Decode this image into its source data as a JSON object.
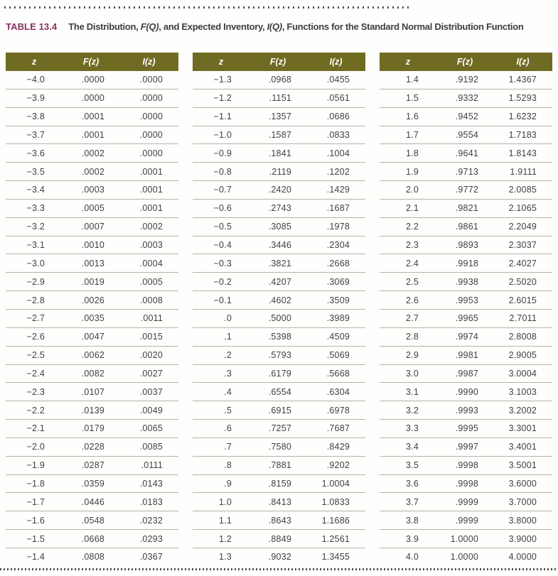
{
  "caption": {
    "label": "TABLE 13.4",
    "title_parts": [
      "The Distribution, ",
      "F(Q)",
      ", and Expected Inventory, ",
      "I(Q)",
      ", Functions for the Standard Normal Distribution Function"
    ]
  },
  "columns": [
    "z",
    "F(z)",
    "I(z)"
  ],
  "colors": {
    "header_bg": "#6f6b22",
    "table_label_color": "#85315f"
  },
  "tables": [
    {
      "rows": [
        [
          "−4.0",
          ".0000",
          ".0000"
        ],
        [
          "−3.9",
          ".0000",
          ".0000"
        ],
        [
          "−3.8",
          ".0001",
          ".0000"
        ],
        [
          "−3.7",
          ".0001",
          ".0000"
        ],
        [
          "−3.6",
          ".0002",
          ".0000"
        ],
        [
          "−3.5",
          ".0002",
          ".0001"
        ],
        [
          "−3.4",
          ".0003",
          ".0001"
        ],
        [
          "−3.3",
          ".0005",
          ".0001"
        ],
        [
          "−3.2",
          ".0007",
          ".0002"
        ],
        [
          "−3.1",
          ".0010",
          ".0003"
        ],
        [
          "−3.0",
          ".0013",
          ".0004"
        ],
        [
          "−2.9",
          ".0019",
          ".0005"
        ],
        [
          "−2.8",
          ".0026",
          ".0008"
        ],
        [
          "−2.7",
          ".0035",
          ".0011"
        ],
        [
          "−2.6",
          ".0047",
          ".0015"
        ],
        [
          "−2.5",
          ".0062",
          ".0020"
        ],
        [
          "−2.4",
          ".0082",
          ".0027"
        ],
        [
          "−2.3",
          ".0107",
          ".0037"
        ],
        [
          "−2.2",
          ".0139",
          ".0049"
        ],
        [
          "−2.1",
          ".0179",
          ".0065"
        ],
        [
          "−2.0",
          ".0228",
          ".0085"
        ],
        [
          "−1.9",
          ".0287",
          ".0111"
        ],
        [
          "−1.8",
          ".0359",
          ".0143"
        ],
        [
          "−1.7",
          ".0446",
          ".0183"
        ],
        [
          "−1.6",
          ".0548",
          ".0232"
        ],
        [
          "−1.5",
          ".0668",
          ".0293"
        ],
        [
          "−1.4",
          ".0808",
          ".0367"
        ]
      ]
    },
    {
      "rows": [
        [
          "−1.3",
          ".0968",
          ".0455"
        ],
        [
          "−1.2",
          ".1151",
          ".0561"
        ],
        [
          "−1.1",
          ".1357",
          ".0686"
        ],
        [
          "−1.0",
          ".1587",
          ".0833"
        ],
        [
          "−0.9",
          ".1841",
          ".1004"
        ],
        [
          "−0.8",
          ".2119",
          ".1202"
        ],
        [
          "−0.7",
          ".2420",
          ".1429"
        ],
        [
          "−0.6",
          ".2743",
          ".1687"
        ],
        [
          "−0.5",
          ".3085",
          ".1978"
        ],
        [
          "−0.4",
          ".3446",
          ".2304"
        ],
        [
          "−0.3",
          ".3821",
          ".2668"
        ],
        [
          "−0.2",
          ".4207",
          ".3069"
        ],
        [
          "−0.1",
          ".4602",
          ".3509"
        ],
        [
          ".0",
          ".5000",
          ".3989"
        ],
        [
          ".1",
          ".5398",
          ".4509"
        ],
        [
          ".2",
          ".5793",
          ".5069"
        ],
        [
          ".3",
          ".6179",
          ".5668"
        ],
        [
          ".4",
          ".6554",
          ".6304"
        ],
        [
          ".5",
          ".6915",
          ".6978"
        ],
        [
          ".6",
          ".7257",
          ".7687"
        ],
        [
          ".7",
          ".7580",
          ".8429"
        ],
        [
          ".8",
          ".7881",
          ".9202"
        ],
        [
          ".9",
          ".8159",
          "1.0004"
        ],
        [
          "1.0",
          ".8413",
          "1.0833"
        ],
        [
          "1.1",
          ".8643",
          "1.1686"
        ],
        [
          "1.2",
          ".8849",
          "1.2561"
        ],
        [
          "1.3",
          ".9032",
          "1.3455"
        ]
      ]
    },
    {
      "rows": [
        [
          "1.4",
          ".9192",
          "1.4367"
        ],
        [
          "1.5",
          ".9332",
          "1.5293"
        ],
        [
          "1.6",
          ".9452",
          "1.6232"
        ],
        [
          "1.7",
          ".9554",
          "1.7183"
        ],
        [
          "1.8",
          ".9641",
          "1.8143"
        ],
        [
          "1.9",
          ".9713",
          "1.9111"
        ],
        [
          "2.0",
          ".9772",
          "2.0085"
        ],
        [
          "2.1",
          ".9821",
          "2.1065"
        ],
        [
          "2.2",
          ".9861",
          "2.2049"
        ],
        [
          "2.3",
          ".9893",
          "2.3037"
        ],
        [
          "2.4",
          ".9918",
          "2.4027"
        ],
        [
          "2.5",
          ".9938",
          "2.5020"
        ],
        [
          "2.6",
          ".9953",
          "2.6015"
        ],
        [
          "2.7",
          ".9965",
          "2.7011"
        ],
        [
          "2.8",
          ".9974",
          "2.8008"
        ],
        [
          "2.9",
          ".9981",
          "2.9005"
        ],
        [
          "3.0",
          ".9987",
          "3.0004"
        ],
        [
          "3.1",
          ".9990",
          "3.1003"
        ],
        [
          "3.2",
          ".9993",
          "3.2002"
        ],
        [
          "3.3",
          ".9995",
          "3.3001"
        ],
        [
          "3.4",
          ".9997",
          "3.4001"
        ],
        [
          "3.5",
          ".9998",
          "3.5001"
        ],
        [
          "3.6",
          ".9998",
          "3.6000"
        ],
        [
          "3.7",
          ".9999",
          "3.7000"
        ],
        [
          "3.8",
          ".9999",
          "3.8000"
        ],
        [
          "3.9",
          "1.0000",
          "3.9000"
        ],
        [
          "4.0",
          "1.0000",
          "4.0000"
        ]
      ]
    }
  ]
}
